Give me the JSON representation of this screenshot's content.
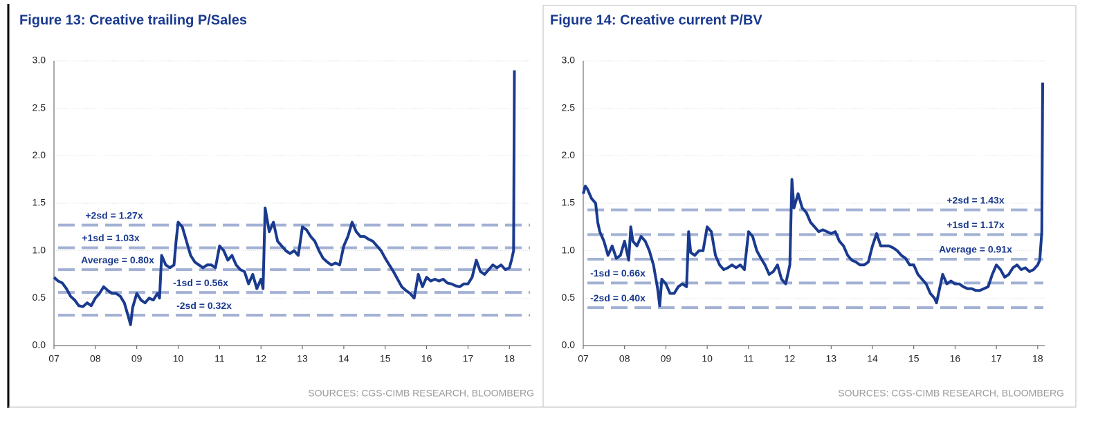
{
  "chart_data": [
    {
      "type": "line",
      "title": "Figure 13: Creative trailing P/Sales",
      "source": "SOURCES: CGS-CIMB RESEARCH, BLOOMBERG",
      "color": "#1a3a8f",
      "grid": true,
      "xlim": [
        2007,
        2018.53
      ],
      "xticks": [
        {
          "value": 2007,
          "label": "07"
        },
        {
          "value": 2008,
          "label": "08"
        },
        {
          "value": 2009,
          "label": "09"
        },
        {
          "value": 2010,
          "label": "10"
        },
        {
          "value": 2011,
          "label": "11"
        },
        {
          "value": 2012,
          "label": "12"
        },
        {
          "value": 2013,
          "label": "13"
        },
        {
          "value": 2014,
          "label": "14"
        },
        {
          "value": 2015,
          "label": "15"
        },
        {
          "value": 2016,
          "label": "16"
        },
        {
          "value": 2017,
          "label": "17"
        },
        {
          "value": 2018,
          "label": "18"
        }
      ],
      "ylim": [
        0,
        3
      ],
      "yticks": [
        {
          "value": 0,
          "label": "0.0"
        },
        {
          "value": 0.5,
          "label": "0.5"
        },
        {
          "value": 1,
          "label": "1.0"
        },
        {
          "value": 1.5,
          "label": "1.5"
        },
        {
          "value": 2,
          "label": "2.0"
        },
        {
          "value": 2.5,
          "label": "2.5"
        },
        {
          "value": 3,
          "label": "3.0"
        }
      ],
      "reference_lines": [
        {
          "label": "+2sd = 1.27x",
          "value": 1.27
        },
        {
          "label": "+1sd = 1.03x",
          "value": 1.03
        },
        {
          "label": "Average = 0.80x",
          "value": 0.8
        },
        {
          "label": "-1sd = 0.56x",
          "value": 0.56
        },
        {
          "label": "-2sd = 0.32x",
          "value": 0.32
        }
      ],
      "x": [
        2007.0,
        2007.1,
        2007.2,
        2007.3,
        2007.4,
        2007.5,
        2007.6,
        2007.7,
        2007.8,
        2007.9,
        2008.0,
        2008.1,
        2008.2,
        2008.3,
        2008.4,
        2008.5,
        2008.6,
        2008.7,
        2008.8,
        2008.85,
        2008.9,
        2009.0,
        2009.1,
        2009.2,
        2009.3,
        2009.4,
        2009.5,
        2009.55,
        2009.6,
        2009.7,
        2009.8,
        2009.9,
        2009.95,
        2010.0,
        2010.1,
        2010.2,
        2010.3,
        2010.4,
        2010.5,
        2010.6,
        2010.7,
        2010.8,
        2010.9,
        2011.0,
        2011.1,
        2011.2,
        2011.3,
        2011.4,
        2011.5,
        2011.6,
        2011.7,
        2011.8,
        2011.9,
        2012.0,
        2012.05,
        2012.1,
        2012.2,
        2012.3,
        2012.4,
        2012.5,
        2012.6,
        2012.7,
        2012.8,
        2012.9,
        2013.0,
        2013.1,
        2013.2,
        2013.3,
        2013.4,
        2013.5,
        2013.6,
        2013.7,
        2013.8,
        2013.9,
        2014.0,
        2014.1,
        2014.2,
        2014.3,
        2014.4,
        2014.5,
        2014.6,
        2014.7,
        2014.8,
        2014.9,
        2015.0,
        2015.1,
        2015.2,
        2015.3,
        2015.4,
        2015.5,
        2015.6,
        2015.7,
        2015.8,
        2015.9,
        2016.0,
        2016.1,
        2016.2,
        2016.3,
        2016.4,
        2016.5,
        2016.6,
        2016.7,
        2016.8,
        2016.9,
        2017.0,
        2017.1,
        2017.2,
        2017.3,
        2017.4,
        2017.5,
        2017.6,
        2017.7,
        2017.8,
        2017.9,
        2018.0,
        2018.05,
        2018.1,
        2018.12
      ],
      "series": [
        {
          "values": [
            0.72,
            0.68,
            0.66,
            0.6,
            0.52,
            0.48,
            0.42,
            0.41,
            0.45,
            0.42,
            0.5,
            0.55,
            0.62,
            0.58,
            0.55,
            0.55,
            0.52,
            0.45,
            0.3,
            0.22,
            0.4,
            0.55,
            0.48,
            0.45,
            0.5,
            0.48,
            0.55,
            0.5,
            0.95,
            0.85,
            0.82,
            0.85,
            1.1,
            1.3,
            1.25,
            1.1,
            0.95,
            0.88,
            0.85,
            0.82,
            0.85,
            0.85,
            0.82,
            1.05,
            1.0,
            0.9,
            0.95,
            0.85,
            0.8,
            0.78,
            0.65,
            0.75,
            0.6,
            0.7,
            0.6,
            1.45,
            1.2,
            1.3,
            1.1,
            1.05,
            1.0,
            0.97,
            1.0,
            0.95,
            1.25,
            1.22,
            1.15,
            1.1,
            1.0,
            0.92,
            0.88,
            0.85,
            0.87,
            0.85,
            1.05,
            1.15,
            1.3,
            1.2,
            1.15,
            1.15,
            1.12,
            1.1,
            1.05,
            1.0,
            0.92,
            0.85,
            0.78,
            0.7,
            0.62,
            0.58,
            0.55,
            0.5,
            0.75,
            0.62,
            0.72,
            0.68,
            0.7,
            0.68,
            0.7,
            0.66,
            0.65,
            0.63,
            0.62,
            0.65,
            0.65,
            0.72,
            0.9,
            0.78,
            0.75,
            0.8,
            0.85,
            0.82,
            0.85,
            0.8,
            0.82,
            0.9,
            1.0,
            2.9
          ]
        }
      ]
    },
    {
      "type": "line",
      "title": "Figure 14: Creative current P/BV",
      "source": "SOURCES: CGS-CIMB RESEARCH, BLOOMBERG",
      "color": "#1a3a8f",
      "grid": true,
      "xlim": [
        2007,
        2018.17
      ],
      "xticks": [
        {
          "value": 2007,
          "label": "07"
        },
        {
          "value": 2008,
          "label": "08"
        },
        {
          "value": 2009,
          "label": "09"
        },
        {
          "value": 2010,
          "label": "10"
        },
        {
          "value": 2011,
          "label": "11"
        },
        {
          "value": 2012,
          "label": "12"
        },
        {
          "value": 2013,
          "label": "13"
        },
        {
          "value": 2014,
          "label": "14"
        },
        {
          "value": 2015,
          "label": "15"
        },
        {
          "value": 2016,
          "label": "16"
        },
        {
          "value": 2017,
          "label": "17"
        },
        {
          "value": 2018,
          "label": "18"
        }
      ],
      "ylim": [
        0,
        3
      ],
      "yticks": [
        {
          "value": 0,
          "label": "0.0"
        },
        {
          "value": 0.5,
          "label": "0.5"
        },
        {
          "value": 1,
          "label": "1.0"
        },
        {
          "value": 1.5,
          "label": "1.5"
        },
        {
          "value": 2,
          "label": "2.0"
        },
        {
          "value": 2.5,
          "label": "2.5"
        },
        {
          "value": 3,
          "label": "3.0"
        }
      ],
      "reference_lines": [
        {
          "label": "+2sd = 1.43x",
          "value": 1.43
        },
        {
          "label": "+1sd = 1.17x",
          "value": 1.17
        },
        {
          "label": "Average = 0.91x",
          "value": 0.91
        },
        {
          "label": "-1sd = 0.66x",
          "value": 0.66
        },
        {
          "label": "-2sd = 0.40x",
          "value": 0.4
        }
      ],
      "x": [
        2007.0,
        2007.05,
        2007.1,
        2007.2,
        2007.3,
        2007.35,
        2007.4,
        2007.5,
        2007.6,
        2007.7,
        2007.8,
        2007.9,
        2008.0,
        2008.1,
        2008.15,
        2008.2,
        2008.3,
        2008.4,
        2008.5,
        2008.6,
        2008.7,
        2008.8,
        2008.85,
        2008.9,
        2009.0,
        2009.1,
        2009.2,
        2009.3,
        2009.4,
        2009.5,
        2009.55,
        2009.6,
        2009.7,
        2009.8,
        2009.9,
        2010.0,
        2010.1,
        2010.2,
        2010.3,
        2010.4,
        2010.5,
        2010.6,
        2010.7,
        2010.8,
        2010.9,
        2011.0,
        2011.1,
        2011.2,
        2011.3,
        2011.4,
        2011.5,
        2011.6,
        2011.7,
        2011.8,
        2011.9,
        2012.0,
        2012.05,
        2012.1,
        2012.2,
        2012.3,
        2012.4,
        2012.5,
        2012.6,
        2012.7,
        2012.8,
        2012.9,
        2013.0,
        2013.1,
        2013.2,
        2013.3,
        2013.4,
        2013.5,
        2013.6,
        2013.7,
        2013.8,
        2013.9,
        2014.0,
        2014.1,
        2014.2,
        2014.3,
        2014.4,
        2014.5,
        2014.6,
        2014.7,
        2014.8,
        2014.9,
        2015.0,
        2015.1,
        2015.2,
        2015.3,
        2015.4,
        2015.5,
        2015.55,
        2015.6,
        2015.7,
        2015.8,
        2015.9,
        2016.0,
        2016.1,
        2016.2,
        2016.3,
        2016.4,
        2016.5,
        2016.6,
        2016.7,
        2016.8,
        2016.9,
        2017.0,
        2017.1,
        2017.2,
        2017.3,
        2017.4,
        2017.5,
        2017.6,
        2017.7,
        2017.8,
        2017.9,
        2018.0,
        2018.05,
        2018.1,
        2018.12
      ],
      "series": [
        {
          "values": [
            1.6,
            1.68,
            1.65,
            1.55,
            1.5,
            1.3,
            1.2,
            1.1,
            0.95,
            1.05,
            0.92,
            0.95,
            1.1,
            0.9,
            1.25,
            1.1,
            1.05,
            1.15,
            1.1,
            1.0,
            0.85,
            0.6,
            0.42,
            0.7,
            0.65,
            0.55,
            0.55,
            0.62,
            0.65,
            0.62,
            1.2,
            0.98,
            0.95,
            1.0,
            1.0,
            1.25,
            1.2,
            0.95,
            0.85,
            0.8,
            0.82,
            0.85,
            0.82,
            0.85,
            0.8,
            1.2,
            1.15,
            1.0,
            0.92,
            0.85,
            0.75,
            0.78,
            0.85,
            0.7,
            0.65,
            0.85,
            1.75,
            1.45,
            1.6,
            1.45,
            1.4,
            1.3,
            1.25,
            1.2,
            1.22,
            1.2,
            1.18,
            1.2,
            1.1,
            1.05,
            0.95,
            0.9,
            0.88,
            0.85,
            0.85,
            0.88,
            1.05,
            1.18,
            1.05,
            1.05,
            1.05,
            1.03,
            1.0,
            0.95,
            0.92,
            0.85,
            0.85,
            0.75,
            0.7,
            0.65,
            0.55,
            0.5,
            0.45,
            0.55,
            0.75,
            0.65,
            0.68,
            0.65,
            0.65,
            0.62,
            0.6,
            0.6,
            0.58,
            0.58,
            0.6,
            0.62,
            0.75,
            0.85,
            0.8,
            0.72,
            0.75,
            0.82,
            0.85,
            0.8,
            0.82,
            0.78,
            0.8,
            0.85,
            0.9,
            1.2,
            2.77
          ]
        }
      ]
    }
  ]
}
